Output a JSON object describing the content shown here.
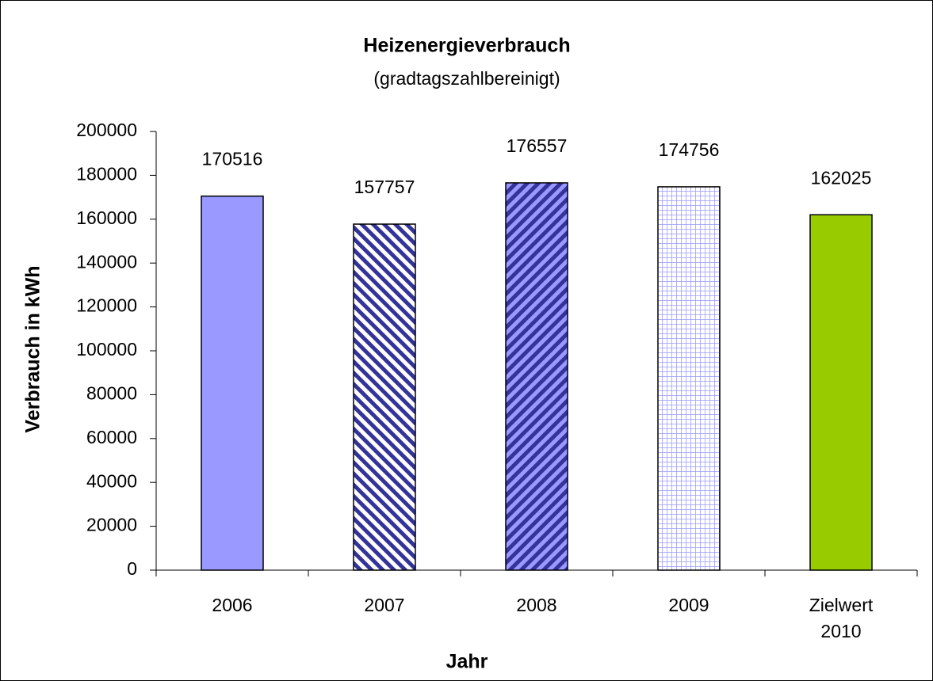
{
  "chart_data": {
    "type": "bar",
    "title": "Heizenergieverbrauch",
    "subtitle": "(gradtagszahlbereinigt)",
    "x_label": "Jahr",
    "y_label": "Verbrauch in kWh",
    "categories": [
      "2006",
      "2007",
      "2008",
      "2009",
      "Zielwert 2010"
    ],
    "values": [
      170516,
      157757,
      176557,
      174756,
      162025
    ],
    "colors": [
      "#9999ff",
      "#333399",
      "#333399",
      "#9999ff",
      "#99cc00"
    ],
    "patterns": [
      "solid",
      "diag-a",
      "diag-b",
      "grid",
      "solid"
    ],
    "ylim": [
      0,
      200000
    ],
    "yticks": [
      0,
      20000,
      40000,
      60000,
      80000,
      100000,
      120000,
      140000,
      160000,
      180000,
      200000
    ],
    "grid": false
  }
}
